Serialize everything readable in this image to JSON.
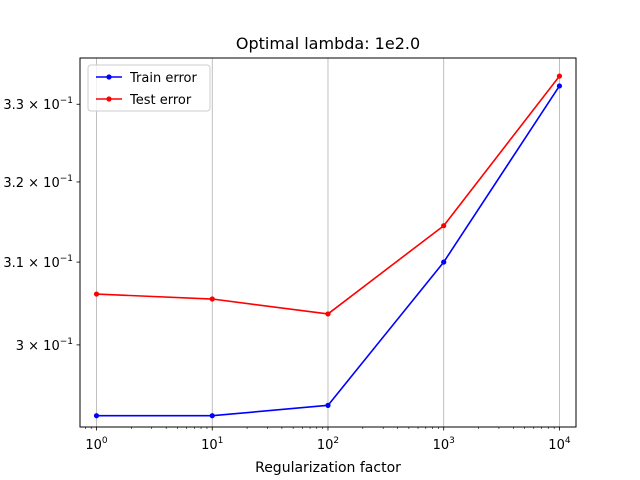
{
  "chart_data": {
    "type": "line",
    "title": "Optimal lambda: 1e2.0",
    "xlabel": "Regularization factor",
    "ylabel": "",
    "xscale": "log",
    "yscale": "log",
    "x": [
      1,
      10,
      100,
      1000,
      10000
    ],
    "x_tick_labels": [
      {
        "base": "10",
        "exp": "0"
      },
      {
        "base": "10",
        "exp": "1"
      },
      {
        "base": "10",
        "exp": "2"
      },
      {
        "base": "10",
        "exp": "3"
      },
      {
        "base": "10",
        "exp": "4"
      }
    ],
    "y_ticks": [
      0.3,
      0.31,
      0.32,
      0.33
    ],
    "y_tick_labels": [
      {
        "mant": "3 × ",
        "base": "10",
        "exp": "−1"
      },
      {
        "mant": "3.1 × ",
        "base": "10",
        "exp": "−1"
      },
      {
        "mant": "3.2 × ",
        "base": "10",
        "exp": "−1"
      },
      {
        "mant": "3.3 × ",
        "base": "10",
        "exp": "−1"
      }
    ],
    "xlim": [
      0.72,
      13900
    ],
    "ylim": [
      0.2904,
      0.3361
    ],
    "grid": "x-major",
    "legend": "top-left",
    "series": [
      {
        "name": "Train error",
        "color": "#0000ff",
        "values": [
          0.2917,
          0.2917,
          0.2929,
          0.31,
          0.3324
        ]
      },
      {
        "name": "Test error",
        "color": "#ff0000",
        "values": [
          0.3061,
          0.3055,
          0.3037,
          0.3145,
          0.3337
        ]
      }
    ]
  }
}
